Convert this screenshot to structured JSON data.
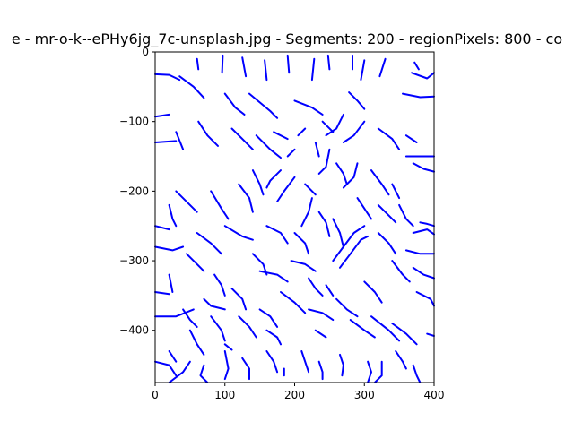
{
  "chart_data": {
    "type": "line",
    "title": "e - mr-o-k--ePHy6jg_7c-unsplash.jpg - Segments: 200 - regionPixels: 800 - co",
    "xlabel": "",
    "ylabel": "",
    "xlim": [
      0,
      400
    ],
    "ylim": [
      -475,
      0
    ],
    "grid": false,
    "legend": "none",
    "line_color": "#0000ff",
    "x_ticks": [
      {
        "value": 0,
        "label": "0"
      },
      {
        "value": 100,
        "label": "100"
      },
      {
        "value": 200,
        "label": "200"
      },
      {
        "value": 300,
        "label": "300"
      },
      {
        "value": 400,
        "label": "400"
      }
    ],
    "y_ticks": [
      {
        "value": 0,
        "label": "0"
      },
      {
        "value": -100,
        "label": "−100"
      },
      {
        "value": -200,
        "label": "−200"
      },
      {
        "value": -300,
        "label": "−300"
      },
      {
        "value": -400,
        "label": "−400"
      }
    ],
    "segments": [
      [
        [
          0,
          -32
        ],
        [
          20,
          -33
        ],
        [
          35,
          -40
        ]
      ],
      [
        [
          35,
          -35
        ],
        [
          55,
          -50
        ],
        [
          70,
          -66
        ]
      ],
      [
        [
          60,
          -10
        ],
        [
          62,
          -25
        ]
      ],
      [
        [
          97,
          -5
        ],
        [
          96,
          -30
        ]
      ],
      [
        [
          125,
          -8
        ],
        [
          130,
          -35
        ]
      ],
      [
        [
          157,
          -12
        ],
        [
          160,
          -40
        ]
      ],
      [
        [
          190,
          -5
        ],
        [
          192,
          -30
        ]
      ],
      [
        [
          228,
          -10
        ],
        [
          225,
          -40
        ]
      ],
      [
        [
          248,
          -5
        ],
        [
          250,
          -25
        ]
      ],
      [
        [
          283,
          -5
        ],
        [
          283,
          -25
        ]
      ],
      [
        [
          300,
          -12
        ],
        [
          295,
          -40
        ]
      ],
      [
        [
          330,
          -10
        ],
        [
          322,
          -35
        ]
      ],
      [
        [
          372,
          -15
        ],
        [
          378,
          -25
        ]
      ],
      [
        [
          368,
          -30
        ],
        [
          390,
          -38
        ],
        [
          400,
          -30
        ]
      ],
      [
        [
          355,
          -60
        ],
        [
          380,
          -65
        ],
        [
          400,
          -64
        ]
      ],
      [
        [
          0,
          -93
        ],
        [
          20,
          -90
        ]
      ],
      [
        [
          0,
          -130
        ],
        [
          30,
          -128
        ]
      ],
      [
        [
          30,
          -115
        ],
        [
          40,
          -140
        ]
      ],
      [
        [
          62,
          -100
        ],
        [
          75,
          -120
        ],
        [
          90,
          -135
        ]
      ],
      [
        [
          100,
          -60
        ],
        [
          115,
          -80
        ],
        [
          128,
          -90
        ]
      ],
      [
        [
          135,
          -60
        ],
        [
          165,
          -85
        ],
        [
          175,
          -95
        ]
      ],
      [
        [
          170,
          -115
        ],
        [
          190,
          -125
        ]
      ],
      [
        [
          200,
          -70
        ],
        [
          225,
          -80
        ],
        [
          240,
          -90
        ]
      ],
      [
        [
          240,
          -100
        ],
        [
          255,
          -115
        ]
      ],
      [
        [
          278,
          -58
        ],
        [
          290,
          -70
        ],
        [
          300,
          -82
        ]
      ],
      [
        [
          270,
          -90
        ],
        [
          260,
          -110
        ],
        [
          245,
          -120
        ]
      ],
      [
        [
          300,
          -100
        ],
        [
          285,
          -120
        ],
        [
          270,
          -130
        ]
      ],
      [
        [
          320,
          -110
        ],
        [
          340,
          -125
        ],
        [
          350,
          -140
        ]
      ],
      [
        [
          360,
          -120
        ],
        [
          375,
          -130
        ]
      ],
      [
        [
          360,
          -150
        ],
        [
          400,
          -150
        ]
      ],
      [
        [
          370,
          -160
        ],
        [
          385,
          -168
        ],
        [
          400,
          -172
        ]
      ],
      [
        [
          110,
          -110
        ],
        [
          125,
          -125
        ],
        [
          140,
          -140
        ]
      ],
      [
        [
          145,
          -120
        ],
        [
          165,
          -140
        ],
        [
          180,
          -152
        ]
      ],
      [
        [
          190,
          -150
        ],
        [
          200,
          -140
        ]
      ],
      [
        [
          205,
          -120
        ],
        [
          215,
          -110
        ]
      ],
      [
        [
          230,
          -130
        ],
        [
          235,
          -150
        ]
      ],
      [
        [
          250,
          -140
        ],
        [
          245,
          -165
        ],
        [
          235,
          -175
        ]
      ],
      [
        [
          180,
          -170
        ],
        [
          165,
          -185
        ],
        [
          160,
          -195
        ]
      ],
      [
        [
          140,
          -170
        ],
        [
          150,
          -190
        ],
        [
          155,
          -205
        ]
      ],
      [
        [
          200,
          -180
        ],
        [
          185,
          -200
        ],
        [
          175,
          -215
        ]
      ],
      [
        [
          215,
          -190
        ],
        [
          230,
          -205
        ]
      ],
      [
        [
          225,
          -210
        ],
        [
          220,
          -230
        ],
        [
          210,
          -250
        ]
      ],
      [
        [
          260,
          -160
        ],
        [
          270,
          -175
        ],
        [
          275,
          -190
        ]
      ],
      [
        [
          290,
          -160
        ],
        [
          285,
          -180
        ],
        [
          270,
          -195
        ]
      ],
      [
        [
          310,
          -170
        ],
        [
          325,
          -190
        ],
        [
          335,
          -205
        ]
      ],
      [
        [
          340,
          -190
        ],
        [
          350,
          -210
        ]
      ],
      [
        [
          350,
          -220
        ],
        [
          360,
          -240
        ],
        [
          370,
          -250
        ]
      ],
      [
        [
          370,
          -260
        ],
        [
          390,
          -255
        ],
        [
          400,
          -262
        ]
      ],
      [
        [
          380,
          -245
        ],
        [
          390,
          -247
        ],
        [
          400,
          -250
        ]
      ],
      [
        [
          30,
          -200
        ],
        [
          50,
          -220
        ],
        [
          60,
          -230
        ]
      ],
      [
        [
          20,
          -220
        ],
        [
          25,
          -240
        ],
        [
          30,
          -250
        ]
      ],
      [
        [
          0,
          -250
        ],
        [
          20,
          -255
        ]
      ],
      [
        [
          0,
          -280
        ],
        [
          25,
          -285
        ],
        [
          40,
          -280
        ]
      ],
      [
        [
          80,
          -200
        ],
        [
          95,
          -225
        ],
        [
          105,
          -240
        ]
      ],
      [
        [
          120,
          -190
        ],
        [
          135,
          -210
        ],
        [
          140,
          -230
        ]
      ],
      [
        [
          100,
          -250
        ],
        [
          125,
          -265
        ],
        [
          140,
          -270
        ]
      ],
      [
        [
          60,
          -260
        ],
        [
          80,
          -275
        ],
        [
          95,
          -290
        ]
      ],
      [
        [
          45,
          -290
        ],
        [
          60,
          -305
        ],
        [
          70,
          -315
        ]
      ],
      [
        [
          20,
          -320
        ],
        [
          25,
          -345
        ]
      ],
      [
        [
          0,
          -345
        ],
        [
          20,
          -348
        ]
      ],
      [
        [
          0,
          -380
        ],
        [
          30,
          -380
        ],
        [
          55,
          -370
        ]
      ],
      [
        [
          70,
          -355
        ],
        [
          80,
          -365
        ],
        [
          100,
          -370
        ]
      ],
      [
        [
          110,
          -340
        ],
        [
          125,
          -355
        ],
        [
          130,
          -370
        ]
      ],
      [
        [
          150,
          -315
        ],
        [
          175,
          -320
        ],
        [
          190,
          -330
        ]
      ],
      [
        [
          195,
          -300
        ],
        [
          215,
          -305
        ],
        [
          230,
          -315
        ]
      ],
      [
        [
          160,
          -250
        ],
        [
          180,
          -260
        ],
        [
          190,
          -275
        ]
      ],
      [
        [
          200,
          -260
        ],
        [
          215,
          -275
        ],
        [
          220,
          -290
        ]
      ],
      [
        [
          235,
          -230
        ],
        [
          245,
          -245
        ],
        [
          250,
          -265
        ]
      ],
      [
        [
          255,
          -240
        ],
        [
          265,
          -260
        ],
        [
          270,
          -280
        ]
      ],
      [
        [
          255,
          -300
        ],
        [
          270,
          -280
        ],
        [
          285,
          -260
        ],
        [
          300,
          -250
        ]
      ],
      [
        [
          265,
          -310
        ],
        [
          280,
          -290
        ],
        [
          295,
          -270
        ],
        [
          305,
          -265
        ]
      ],
      [
        [
          290,
          -210
        ],
        [
          300,
          -225
        ],
        [
          310,
          -240
        ]
      ],
      [
        [
          320,
          -220
        ],
        [
          335,
          -235
        ],
        [
          345,
          -245
        ]
      ],
      [
        [
          320,
          -260
        ],
        [
          335,
          -275
        ],
        [
          345,
          -290
        ]
      ],
      [
        [
          340,
          -300
        ],
        [
          355,
          -320
        ],
        [
          365,
          -330
        ]
      ],
      [
        [
          360,
          -285
        ],
        [
          380,
          -290
        ],
        [
          400,
          -290
        ]
      ],
      [
        [
          370,
          -310
        ],
        [
          385,
          -320
        ],
        [
          400,
          -325
        ]
      ],
      [
        [
          375,
          -345
        ],
        [
          395,
          -355
        ],
        [
          400,
          -365
        ]
      ],
      [
        [
          390,
          -405
        ],
        [
          400,
          -408
        ]
      ],
      [
        [
          300,
          -330
        ],
        [
          315,
          -345
        ],
        [
          325,
          -360
        ]
      ],
      [
        [
          220,
          -325
        ],
        [
          230,
          -340
        ],
        [
          240,
          -350
        ]
      ],
      [
        [
          245,
          -335
        ],
        [
          255,
          -350
        ]
      ],
      [
        [
          180,
          -345
        ],
        [
          200,
          -360
        ],
        [
          215,
          -375
        ]
      ],
      [
        [
          220,
          -370
        ],
        [
          240,
          -375
        ],
        [
          255,
          -385
        ]
      ],
      [
        [
          260,
          -355
        ],
        [
          275,
          -370
        ],
        [
          290,
          -380
        ]
      ],
      [
        [
          280,
          -385
        ],
        [
          300,
          -400
        ],
        [
          315,
          -410
        ]
      ],
      [
        [
          310,
          -380
        ],
        [
          335,
          -400
        ],
        [
          350,
          -415
        ]
      ],
      [
        [
          340,
          -390
        ],
        [
          360,
          -405
        ],
        [
          375,
          -420
        ]
      ],
      [
        [
          150,
          -370
        ],
        [
          165,
          -380
        ],
        [
          175,
          -395
        ]
      ],
      [
        [
          120,
          -380
        ],
        [
          135,
          -395
        ],
        [
          145,
          -410
        ]
      ],
      [
        [
          80,
          -380
        ],
        [
          95,
          -400
        ],
        [
          100,
          -415
        ]
      ],
      [
        [
          50,
          -400
        ],
        [
          60,
          -420
        ],
        [
          70,
          -435
        ]
      ],
      [
        [
          20,
          -430
        ],
        [
          30,
          -445
        ]
      ],
      [
        [
          0,
          -445
        ],
        [
          20,
          -450
        ],
        [
          30,
          -465
        ]
      ],
      [
        [
          50,
          -445
        ],
        [
          40,
          -460
        ],
        [
          20,
          -475
        ]
      ],
      [
        [
          70,
          -450
        ],
        [
          65,
          -465
        ],
        [
          75,
          -475
        ]
      ],
      [
        [
          100,
          -430
        ],
        [
          105,
          -455
        ],
        [
          100,
          -470
        ]
      ],
      [
        [
          125,
          -440
        ],
        [
          135,
          -455
        ],
        [
          135,
          -470
        ]
      ],
      [
        [
          160,
          -430
        ],
        [
          170,
          -445
        ],
        [
          175,
          -460
        ]
      ],
      [
        [
          185,
          -455
        ],
        [
          185,
          -465
        ]
      ],
      [
        [
          210,
          -430
        ],
        [
          215,
          -445
        ],
        [
          220,
          -460
        ]
      ],
      [
        [
          235,
          -445
        ],
        [
          240,
          -460
        ],
        [
          240,
          -470
        ]
      ],
      [
        [
          265,
          -435
        ],
        [
          270,
          -450
        ],
        [
          268,
          -465
        ]
      ],
      [
        [
          305,
          -445
        ],
        [
          310,
          -460
        ],
        [
          305,
          -475
        ]
      ],
      [
        [
          325,
          -445
        ],
        [
          325,
          -465
        ],
        [
          315,
          -475
        ]
      ],
      [
        [
          345,
          -430
        ],
        [
          355,
          -445
        ],
        [
          360,
          -455
        ]
      ],
      [
        [
          370,
          -450
        ],
        [
          375,
          -465
        ],
        [
          380,
          -475
        ]
      ],
      [
        [
          40,
          -370
        ],
        [
          50,
          -385
        ],
        [
          60,
          -395
        ]
      ],
      [
        [
          85,
          -320
        ],
        [
          95,
          -335
        ],
        [
          100,
          -350
        ]
      ],
      [
        [
          140,
          -290
        ],
        [
          155,
          -305
        ],
        [
          160,
          -320
        ]
      ],
      [
        [
          160,
          -400
        ],
        [
          175,
          -410
        ],
        [
          180,
          -420
        ]
      ],
      [
        [
          230,
          -400
        ],
        [
          245,
          -410
        ]
      ],
      [
        [
          100,
          -420
        ],
        [
          110,
          -428
        ]
      ]
    ]
  }
}
